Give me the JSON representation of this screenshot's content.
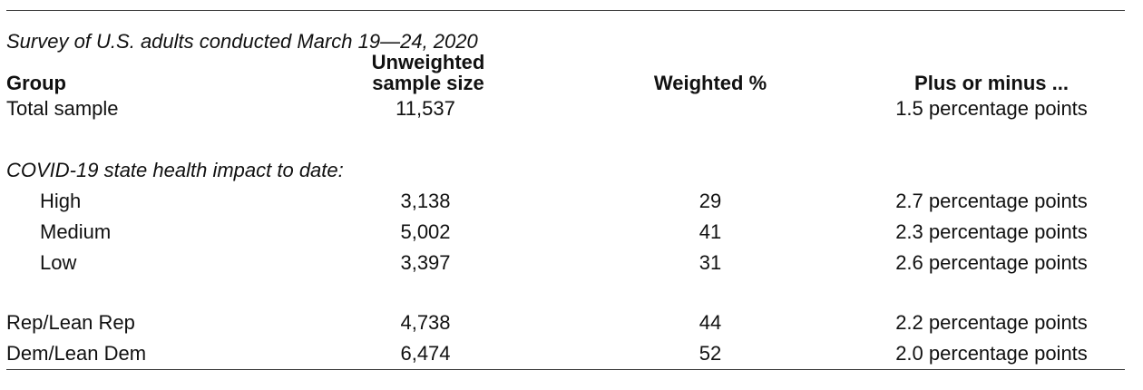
{
  "subtitle": "Survey of U.S. adults conducted March 19—24, 2020",
  "headers": {
    "group": "Group",
    "sample_line1": "Unweighted",
    "sample_line2": "sample size",
    "weighted": "Weighted %",
    "margin": "Plus or minus ..."
  },
  "total": {
    "label": "Total sample",
    "sample": "11,537",
    "weighted": "",
    "margin": "1.5 percentage points"
  },
  "impact_label": "COVID-19 state health impact to date:",
  "impact_rows": [
    {
      "label": "High",
      "sample": "3,138",
      "weighted": "29",
      "margin": "2.7 percentage points"
    },
    {
      "label": "Medium",
      "sample": "5,002",
      "weighted": "41",
      "margin": "2.3 percentage points"
    },
    {
      "label": "Low",
      "sample": "3,397",
      "weighted": "31",
      "margin": "2.6 percentage points"
    }
  ],
  "party_rows": [
    {
      "label": "Rep/Lean Rep",
      "sample": "4,738",
      "weighted": "44",
      "margin": "2.2 percentage points"
    },
    {
      "label": "Dem/Lean Dem",
      "sample": "6,474",
      "weighted": "52",
      "margin": "2.0 percentage points"
    }
  ]
}
